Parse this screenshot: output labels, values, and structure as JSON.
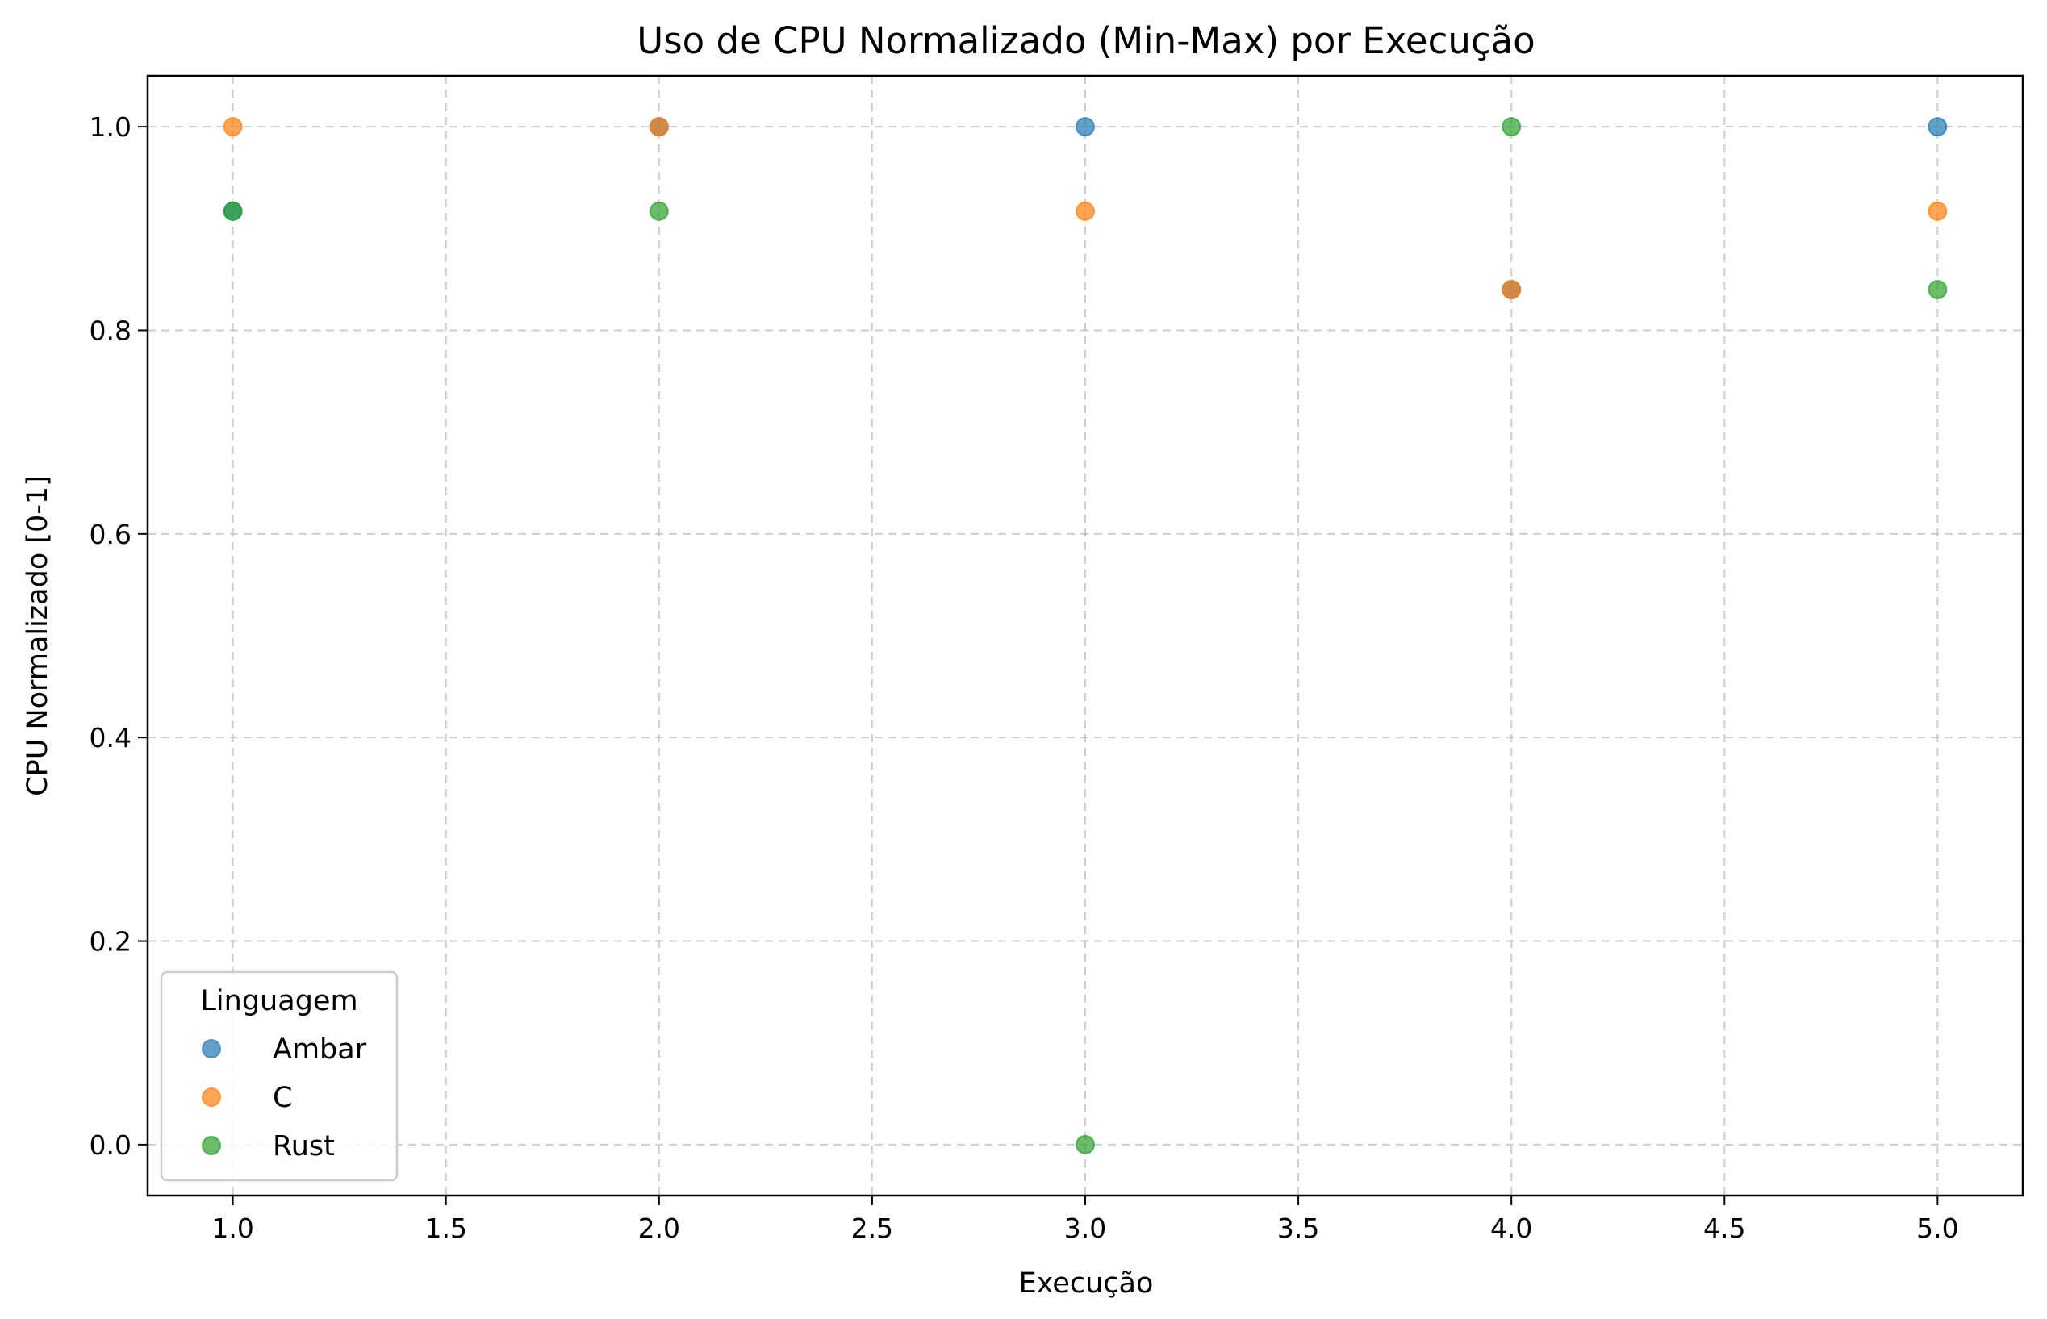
{
  "chart_data": {
    "type": "scatter",
    "title": "Uso de CPU Normalizado (Min-Max) por Execução",
    "xlabel": "Execução",
    "ylabel": "CPU Normalizado [0-1]",
    "xlim": [
      0.8,
      5.2
    ],
    "ylim": [
      -0.05,
      1.05
    ],
    "xticks": [
      1.0,
      1.5,
      2.0,
      2.5,
      3.0,
      3.5,
      4.0,
      4.5,
      5.0
    ],
    "xtick_labels": [
      "1.0",
      "1.5",
      "2.0",
      "2.5",
      "3.0",
      "3.5",
      "4.0",
      "4.5",
      "5.0"
    ],
    "yticks": [
      0.0,
      0.2,
      0.4,
      0.6,
      0.8,
      1.0
    ],
    "ytick_labels": [
      "0.0",
      "0.2",
      "0.4",
      "0.6",
      "0.8",
      "1.0"
    ],
    "grid": true,
    "legend": {
      "title": "Linguagem",
      "placement": "lower-left"
    },
    "series": [
      {
        "name": "Ambar",
        "color": "#1f77b4",
        "x": [
          1,
          2,
          3,
          4,
          5
        ],
        "y": [
          0.917,
          1.0,
          1.0,
          0.84,
          1.0
        ]
      },
      {
        "name": "C",
        "color": "#ff7f0e",
        "x": [
          1,
          2,
          3,
          4,
          5
        ],
        "y": [
          1.0,
          1.0,
          0.917,
          0.84,
          0.917
        ]
      },
      {
        "name": "Rust",
        "color": "#2ca02c",
        "x": [
          1,
          2,
          3,
          4,
          5
        ],
        "y": [
          0.917,
          0.917,
          0.0,
          1.0,
          0.84
        ]
      }
    ]
  }
}
